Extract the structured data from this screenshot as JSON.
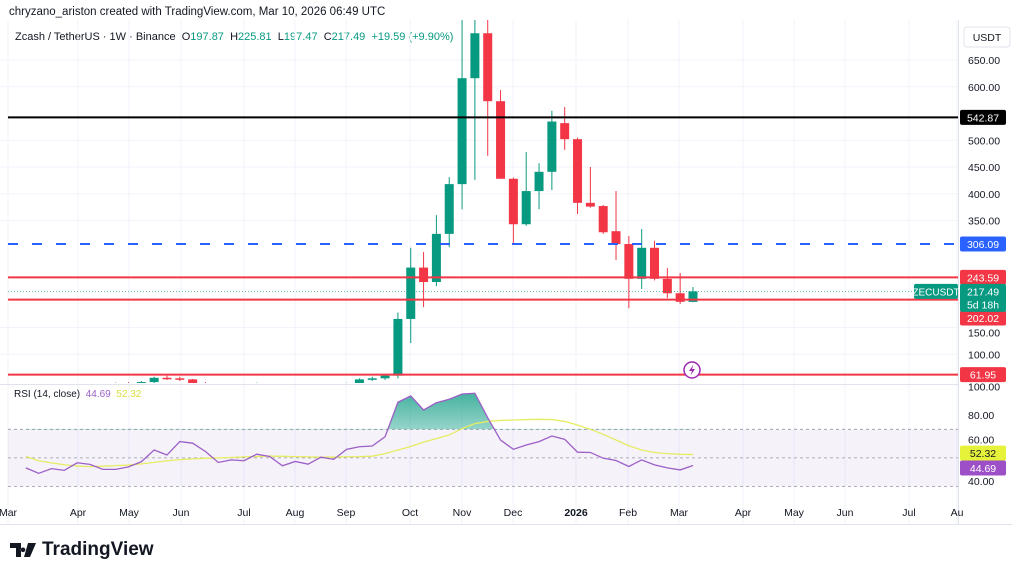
{
  "header": {
    "credit": "chryzano_ariston created with TradingView.com, Mar 10, 2026 06:49 UTC",
    "symbol": "Zcash / TetherUS · 1W · Binance",
    "o_label": "O",
    "o": "197.87",
    "h_label": "H",
    "h": "225.81",
    "l_label": "L",
    "l": "197.47",
    "c_label": "C",
    "c": "217.49",
    "change": "+19.59 (+9.90%)"
  },
  "brand": "TradingView",
  "colors": {
    "up": "#089981",
    "down": "#f23645",
    "rsi": "#9c5fc7",
    "rsi_ma": "#e6ec62",
    "level_blue": "#2962ff",
    "level_black": "#000000"
  },
  "chart_data": [
    {
      "type": "candlestick",
      "interval": "1W",
      "currency_label": "USDT",
      "y_scale": "linear",
      "ylim": [
        46,
        687
      ],
      "y_ticks": [
        "650.00",
        "600.00",
        "500.00",
        "450.00",
        "400.00",
        "350.00",
        "150.00",
        "100.00"
      ],
      "x_ticks": [
        "Mar",
        "Apr",
        "May",
        "Jun",
        "Jul",
        "Aug",
        "Sep",
        "Oct",
        "Nov",
        "Dec",
        "2026",
        "Feb",
        "Mar",
        "Apr",
        "May",
        "Jun",
        "Jul",
        "Au"
      ],
      "ohlc": [
        [
          38,
          42,
          34,
          36
        ],
        [
          36,
          40,
          33,
          38
        ],
        [
          38,
          41,
          35,
          37
        ],
        [
          37,
          40,
          34,
          39
        ],
        [
          39,
          44,
          37,
          42
        ],
        [
          42,
          45,
          38,
          40
        ],
        [
          40,
          44,
          37,
          43
        ],
        [
          43,
          47,
          40,
          45
        ],
        [
          45,
          48,
          41,
          44
        ],
        [
          44,
          50,
          42,
          48
        ],
        [
          48,
          58,
          46,
          56
        ],
        [
          56,
          60,
          52,
          55
        ],
        [
          55,
          58,
          50,
          53
        ],
        [
          53,
          54,
          44,
          46
        ],
        [
          46,
          48,
          40,
          42
        ],
        [
          42,
          45,
          39,
          44
        ],
        [
          44,
          46,
          40,
          41
        ],
        [
          41,
          45,
          39,
          43
        ],
        [
          43,
          47,
          41,
          45
        ],
        [
          45,
          46,
          38,
          40
        ],
        [
          40,
          43,
          37,
          41
        ],
        [
          41,
          44,
          38,
          39
        ],
        [
          39,
          44,
          38,
          43
        ],
        [
          43,
          45,
          40,
          42
        ],
        [
          42,
          46,
          40,
          44
        ],
        [
          44,
          47,
          42,
          45
        ],
        [
          45,
          55,
          44,
          53
        ],
        [
          53,
          58,
          50,
          55
        ],
        [
          55,
          62,
          52,
          60
        ],
        [
          60,
          178,
          55,
          166
        ],
        [
          166,
          299,
          121,
          262
        ],
        [
          262,
          291,
          188,
          235
        ],
        [
          235,
          360,
          227,
          325
        ],
        [
          325,
          431,
          300,
          418
        ],
        [
          418,
          740,
          371,
          616
        ],
        [
          616,
          740,
          426,
          700
        ],
        [
          700,
          740,
          471,
          573
        ],
        [
          573,
          594,
          428,
          428
        ],
        [
          428,
          430,
          306,
          343
        ],
        [
          343,
          478,
          340,
          405
        ],
        [
          405,
          457,
          371,
          441
        ],
        [
          441,
          555,
          407,
          535
        ],
        [
          532,
          562,
          482,
          502
        ],
        [
          502,
          505,
          362,
          383
        ],
        [
          383,
          450,
          374,
          376
        ],
        [
          377,
          379,
          325,
          328
        ],
        [
          330,
          405,
          276,
          306
        ],
        [
          306,
          321,
          186,
          241
        ],
        [
          241,
          334,
          222,
          299
        ],
        [
          299,
          312,
          238,
          241
        ],
        [
          241,
          261,
          205,
          214
        ],
        [
          214,
          252,
          194,
          198
        ],
        [
          197.87,
          225.81,
          197.47,
          217.49
        ]
      ],
      "levels": [
        {
          "value": 542.87,
          "label": "542.87",
          "style": "solid",
          "color": "#000000"
        },
        {
          "value": 306.09,
          "label": "306.09",
          "style": "dashed",
          "color": "#2962ff"
        },
        {
          "value": 243.59,
          "label": "243.59",
          "style": "solid",
          "color": "#f23645"
        },
        {
          "value": 202.02,
          "label": "202.02",
          "style": "solid",
          "color": "#f23645"
        },
        {
          "value": 61.95,
          "label": "61.95",
          "style": "solid",
          "color": "#f23645"
        }
      ],
      "last_price": {
        "symbol": "ZECUSDT",
        "value": 217.49,
        "label": "217.49",
        "countdown": "5d 18h"
      }
    },
    {
      "type": "line",
      "title": "RSI (14, close)",
      "value_label": "44.69",
      "ma_label": "52.32",
      "ylim": [
        20,
        100
      ],
      "y_ticks": [
        "100.00",
        "80.00",
        "60.00",
        "40.00"
      ],
      "bands": [
        70,
        50,
        30
      ],
      "rsi": [
        43,
        39.2,
        42.5,
        41.3,
        46.6,
        45.5,
        42,
        42,
        43.7,
        47.3,
        55.5,
        52,
        61.4,
        60.3,
        54.5,
        46.8,
        48.6,
        48,
        52.6,
        51,
        44.5,
        47.5,
        45.6,
        50.5,
        49,
        56,
        57.8,
        58.3,
        64.8,
        88.9,
        93.3,
        83.5,
        88.6,
        91,
        94.7,
        95.2,
        78,
        62.5,
        56,
        59,
        61.4,
        65.3,
        63,
        54,
        53.8,
        49.8,
        48.2,
        44,
        48.6,
        45.1,
        43,
        41.6,
        44.69
      ],
      "rsi_ma": [
        51,
        48,
        46.5,
        45.2,
        44.3,
        43.9,
        44.2,
        44.6,
        45,
        45.8,
        46.9,
        47.9,
        48.8,
        49.3,
        49.7,
        50,
        50.3,
        50.7,
        51,
        51.3,
        51.1,
        50.9,
        50.7,
        50.5,
        50.6,
        50.8,
        50.9,
        51.2,
        53,
        55.5,
        58,
        61,
        63.5,
        66,
        70.5,
        74,
        75.5,
        76.2,
        76.5,
        76.8,
        77,
        76.8,
        75.5,
        73,
        70,
        66.5,
        62.5,
        58.5,
        55.5,
        53.8,
        53,
        52.5,
        52.32
      ]
    }
  ]
}
